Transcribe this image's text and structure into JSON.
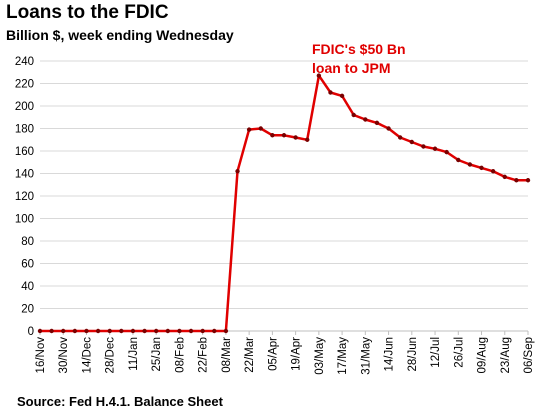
{
  "chart_data": {
    "type": "line",
    "title": "Loans to the FDIC",
    "subtitle": "Billion $, week ending Wednesday",
    "source": "Source: Fed H.4.1. Balance Sheet",
    "annotation": [
      "FDIC's $50 Bn",
      "loan to JPM"
    ],
    "ylim": [
      0,
      240
    ],
    "yticks": [
      0,
      20,
      40,
      60,
      80,
      100,
      120,
      140,
      160,
      180,
      200,
      220,
      240
    ],
    "x_tick_labels": [
      "16/Nov",
      "30/Nov",
      "14/Dec",
      "28/Dec",
      "11/Jan",
      "25/Jan",
      "08/Feb",
      "22/Feb",
      "08/Mar",
      "22/Mar",
      "05/Apr",
      "19/Apr",
      "03/May",
      "17/May",
      "31/May",
      "14/Jun",
      "28/Jun",
      "12/Jul",
      "26/Jul",
      "09/Aug",
      "23/Aug",
      "06/Sep"
    ],
    "grid": "horizontal",
    "series_color": "#e00000",
    "series": [
      {
        "x": [
          "16/Nov",
          "23/Nov",
          "30/Nov",
          "07/Dec",
          "14/Dec",
          "21/Dec",
          "28/Dec",
          "04/Jan",
          "11/Jan",
          "18/Jan",
          "25/Jan",
          "01/Feb",
          "08/Feb",
          "15/Feb",
          "22/Feb",
          "01/Mar",
          "08/Mar",
          "15/Mar",
          "22/Mar",
          "29/Mar",
          "05/Apr",
          "12/Apr",
          "19/Apr",
          "26/Apr",
          "03/May",
          "10/May",
          "17/May",
          "24/May",
          "31/May",
          "07/Jun",
          "14/Jun",
          "21/Jun",
          "28/Jun",
          "05/Jul",
          "12/Jul",
          "19/Jul",
          "26/Jul",
          "02/Aug",
          "09/Aug",
          "16/Aug",
          "23/Aug",
          "30/Aug",
          "06/Sep"
        ],
        "values": [
          0,
          0,
          0,
          0,
          0,
          0,
          0,
          0,
          0,
          0,
          0,
          0,
          0,
          0,
          0,
          0,
          0,
          142,
          179,
          180,
          174,
          174,
          172,
          170,
          227,
          212,
          209,
          192,
          188,
          185,
          180,
          172,
          168,
          164,
          162,
          159,
          152,
          148,
          145,
          142,
          137,
          134,
          134
        ]
      }
    ]
  }
}
